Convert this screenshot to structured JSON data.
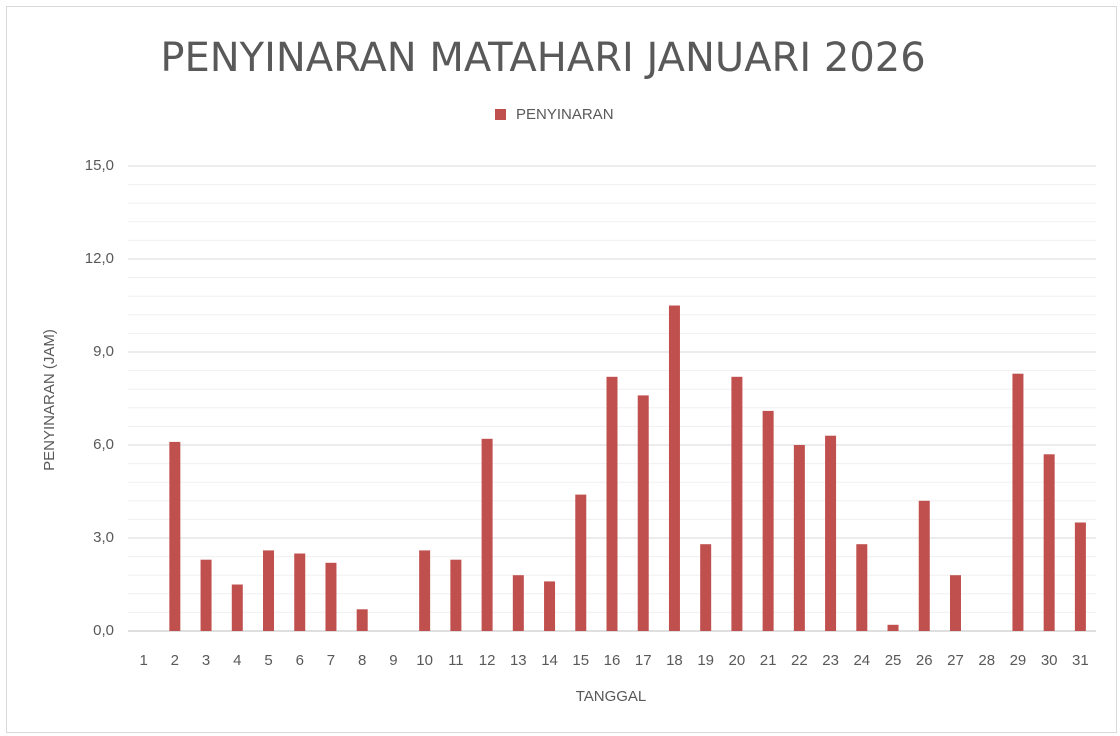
{
  "chart_data": {
    "type": "bar",
    "title": "PENYINARAN MATAHARI JANUARI 2026",
    "x_label": "TANGGAL",
    "y_label": "PENYINARAN (JAM)",
    "categories": [
      "1",
      "2",
      "3",
      "4",
      "5",
      "6",
      "7",
      "8",
      "9",
      "10",
      "11",
      "12",
      "13",
      "14",
      "15",
      "16",
      "17",
      "18",
      "19",
      "20",
      "21",
      "22",
      "23",
      "24",
      "25",
      "26",
      "27",
      "28",
      "29",
      "30",
      "31"
    ],
    "series": [
      {
        "name": "PENYINARAN",
        "color": "#c0504d",
        "values": [
          0,
          6.1,
          2.3,
          1.5,
          2.6,
          2.5,
          2.2,
          0.7,
          0,
          2.6,
          2.3,
          6.2,
          1.8,
          1.6,
          4.4,
          8.2,
          7.6,
          10.5,
          2.8,
          8.2,
          7.1,
          6.0,
          6.3,
          2.8,
          0.2,
          4.2,
          1.8,
          0,
          8.3,
          5.7,
          3.5
        ]
      }
    ],
    "ylim": [
      0,
      15
    ],
    "yticks": [
      {
        "value": 0,
        "label": "0,0"
      },
      {
        "value": 3,
        "label": "3,0"
      },
      {
        "value": 6,
        "label": "6,0"
      },
      {
        "value": 9,
        "label": "9,0"
      },
      {
        "value": 12,
        "label": "12,0"
      },
      {
        "value": 15,
        "label": "15,0"
      }
    ],
    "grid": true,
    "minor_grid_divisions": 5,
    "legend": "top"
  }
}
